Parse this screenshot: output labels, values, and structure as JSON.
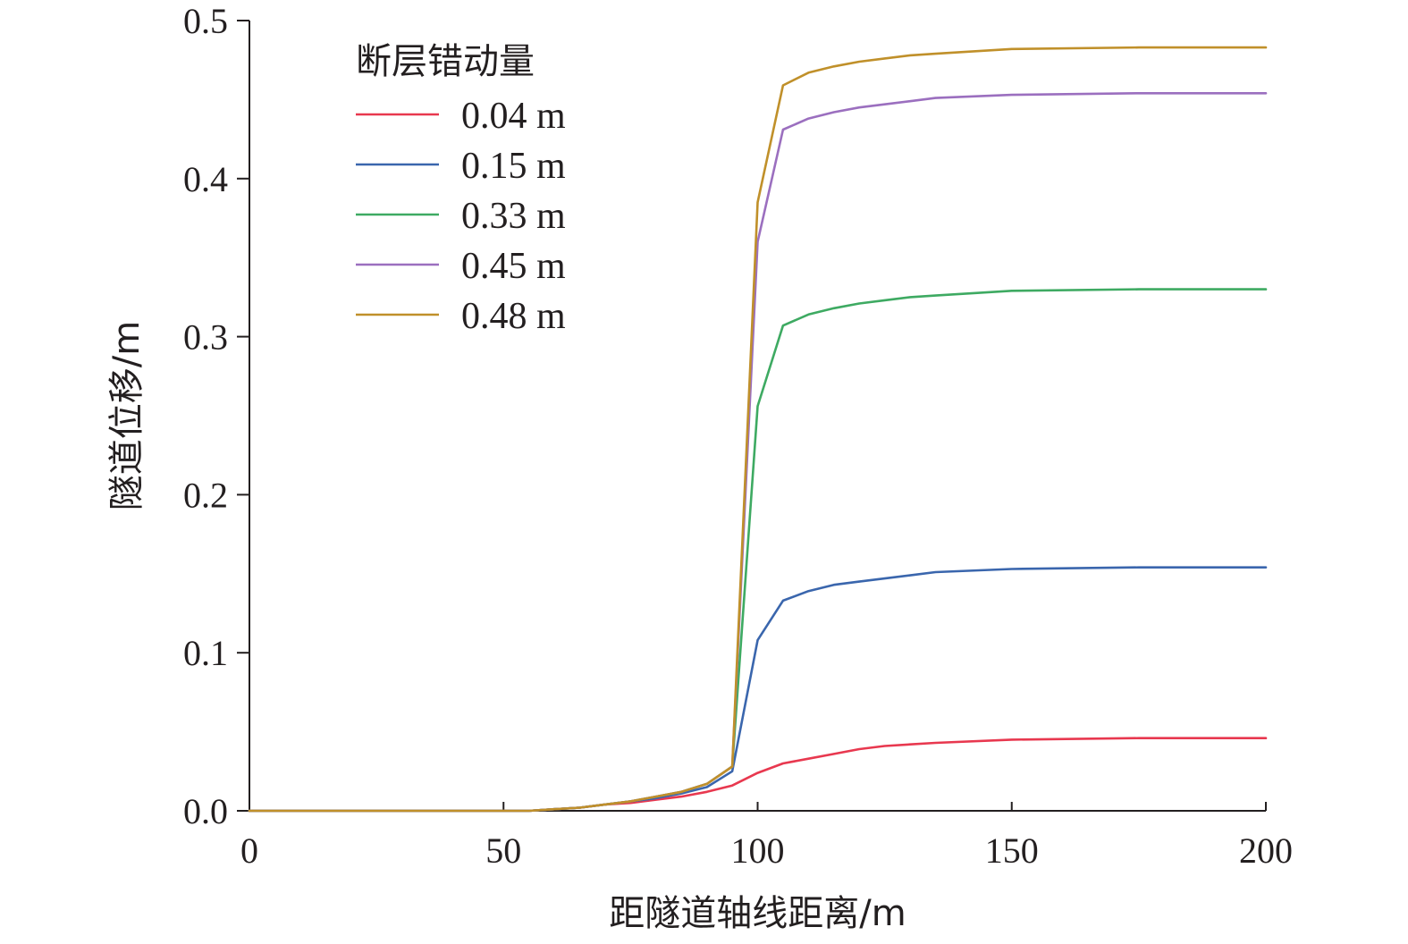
{
  "chart_data": {
    "type": "line",
    "xlabel": "距隧道轴线距离/m",
    "ylabel": "隧道位移/m",
    "xlim": [
      0,
      200
    ],
    "ylim": [
      0,
      0.5
    ],
    "xticks": [
      0,
      50,
      100,
      150,
      200
    ],
    "xtick_labels": [
      "0",
      "50",
      "100",
      "150",
      "200"
    ],
    "yticks": [
      0.0,
      0.1,
      0.2,
      0.3,
      0.4,
      0.5
    ],
    "ytick_labels": [
      "0.0",
      "0.1",
      "0.2",
      "0.3",
      "0.4",
      "0.5"
    ],
    "grid": false,
    "legend": {
      "title": "断层错动量",
      "placement": "top-left"
    },
    "x": [
      0,
      10,
      20,
      30,
      40,
      50,
      55,
      60,
      65,
      70,
      75,
      80,
      85,
      90,
      95,
      100,
      105,
      110,
      115,
      120,
      125,
      130,
      135,
      150,
      175,
      200
    ],
    "series": [
      {
        "name": "0.04 m",
        "color": "#e8384f",
        "values": [
          0,
          0,
          0,
          0,
          0,
          0,
          0,
          0.001,
          0.002,
          0.004,
          0.005,
          0.007,
          0.009,
          0.012,
          0.016,
          0.024,
          0.03,
          0.033,
          0.036,
          0.039,
          0.041,
          0.042,
          0.043,
          0.045,
          0.046,
          0.046
        ]
      },
      {
        "name": "0.15 m",
        "color": "#3a66ad",
        "values": [
          0,
          0,
          0,
          0,
          0,
          0,
          0,
          0.001,
          0.002,
          0.004,
          0.006,
          0.008,
          0.011,
          0.015,
          0.025,
          0.108,
          0.133,
          0.139,
          0.143,
          0.145,
          0.147,
          0.149,
          0.151,
          0.153,
          0.154,
          0.154
        ]
      },
      {
        "name": "0.33 m",
        "color": "#3eaa62",
        "values": [
          0,
          0,
          0,
          0,
          0,
          0,
          0,
          0.001,
          0.002,
          0.004,
          0.006,
          0.009,
          0.012,
          0.017,
          0.028,
          0.256,
          0.307,
          0.314,
          0.318,
          0.321,
          0.323,
          0.325,
          0.326,
          0.329,
          0.33,
          0.33
        ]
      },
      {
        "name": "0.45 m",
        "color": "#9b6fbf",
        "values": [
          0,
          0,
          0,
          0,
          0,
          0,
          0,
          0.001,
          0.002,
          0.004,
          0.006,
          0.009,
          0.012,
          0.017,
          0.028,
          0.36,
          0.431,
          0.438,
          0.442,
          0.445,
          0.447,
          0.449,
          0.451,
          0.453,
          0.454,
          0.454
        ]
      },
      {
        "name": "0.48 m",
        "color": "#c0902a",
        "values": [
          0,
          0,
          0,
          0,
          0,
          0,
          0,
          0.001,
          0.002,
          0.004,
          0.006,
          0.009,
          0.012,
          0.017,
          0.028,
          0.385,
          0.459,
          0.467,
          0.471,
          0.474,
          0.476,
          0.478,
          0.479,
          0.482,
          0.483,
          0.483
        ]
      }
    ]
  }
}
